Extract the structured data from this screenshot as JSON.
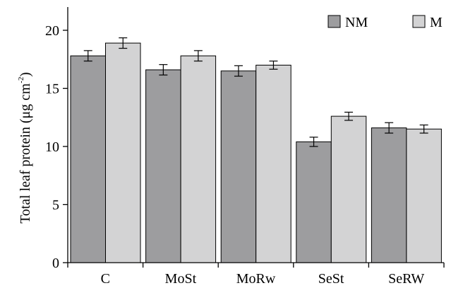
{
  "chart_data": {
    "type": "bar",
    "title": "",
    "xlabel": "",
    "ylabel": {
      "main": "Total leaf protein (μg cm",
      "superscript": "-2",
      "closing": ")"
    },
    "ylim": [
      0,
      22
    ],
    "yticks": [
      0,
      5,
      10,
      15,
      20
    ],
    "categories": [
      "C",
      "MoSt",
      "MoRw",
      "SeSt",
      "SeRW"
    ],
    "series": [
      {
        "name": "NM",
        "color": "#9d9d9f",
        "values": [
          17.8,
          16.6,
          16.5,
          10.4,
          11.6
        ],
        "errors": [
          0.45,
          0.45,
          0.45,
          0.4,
          0.45
        ]
      },
      {
        "name": "M",
        "color": "#d3d3d4",
        "values": [
          18.9,
          17.8,
          17.0,
          12.6,
          11.5
        ],
        "errors": [
          0.45,
          0.45,
          0.35,
          0.35,
          0.35
        ]
      }
    ],
    "legend": "top-right",
    "grid": false
  }
}
